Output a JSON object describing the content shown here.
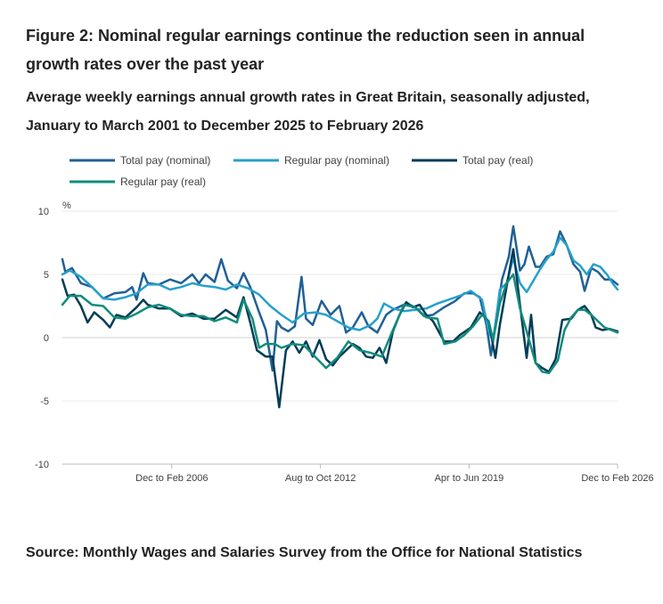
{
  "title": "Figure 2: Nominal regular earnings continue the reduction seen in annual growth rates over the past year",
  "subtitle": "Average weekly earnings annual growth rates in Great Britain, seasonally adjusted, January to March 2001 to December 2025 to February 2026",
  "source": "Source: Monthly Wages and Salaries Survey from the Office for National Statistics",
  "chart_data": {
    "type": "line",
    "ylabel": "%",
    "ylim": [
      -10,
      10
    ],
    "yticks": [
      "10",
      "5",
      "0",
      "-5",
      "-10"
    ],
    "xticks": [
      {
        "label": "Dec to Feb 2006",
        "x": 2006.08
      },
      {
        "label": "Aug to Oct 2012",
        "x": 2012.75
      },
      {
        "label": "Apr to Jun 2019",
        "x": 2019.42
      },
      {
        "label": "Dec to Feb 2026",
        "x": 2026.08
      }
    ],
    "xlim": [
      2001.17,
      2026.08
    ],
    "grid": "horizontal",
    "legend_position": "top",
    "series": [
      {
        "name": "Total pay (nominal)",
        "color": "#206095",
        "points": [
          [
            2001.17,
            6.2
          ],
          [
            2001.3,
            5.2
          ],
          [
            2001.6,
            5.5
          ],
          [
            2002.0,
            4.3
          ],
          [
            2002.5,
            4.0
          ],
          [
            2003.0,
            3.1
          ],
          [
            2003.5,
            3.5
          ],
          [
            2004.0,
            3.6
          ],
          [
            2004.3,
            4.0
          ],
          [
            2004.5,
            3.0
          ],
          [
            2004.8,
            5.1
          ],
          [
            2005.0,
            4.3
          ],
          [
            2005.5,
            4.2
          ],
          [
            2006.0,
            4.6
          ],
          [
            2006.5,
            4.3
          ],
          [
            2007.0,
            5.0
          ],
          [
            2007.3,
            4.3
          ],
          [
            2007.6,
            5.0
          ],
          [
            2008.0,
            4.4
          ],
          [
            2008.3,
            6.2
          ],
          [
            2008.6,
            4.5
          ],
          [
            2009.0,
            3.9
          ],
          [
            2009.3,
            5.1
          ],
          [
            2009.6,
            4.0
          ],
          [
            2010.0,
            2.0
          ],
          [
            2010.3,
            0.6
          ],
          [
            2010.6,
            -2.6
          ],
          [
            2010.8,
            1.3
          ],
          [
            2011.0,
            0.8
          ],
          [
            2011.3,
            0.5
          ],
          [
            2011.6,
            0.9
          ],
          [
            2011.9,
            4.8
          ],
          [
            2012.1,
            1.5
          ],
          [
            2012.4,
            1.0
          ],
          [
            2012.8,
            2.9
          ],
          [
            2013.2,
            1.8
          ],
          [
            2013.6,
            2.5
          ],
          [
            2013.9,
            0.4
          ],
          [
            2014.2,
            0.8
          ],
          [
            2014.6,
            2.0
          ],
          [
            2014.9,
            0.9
          ],
          [
            2015.3,
            0.4
          ],
          [
            2015.7,
            1.8
          ],
          [
            2016.0,
            2.2
          ],
          [
            2016.6,
            2.7
          ],
          [
            2017.0,
            2.4
          ],
          [
            2017.4,
            1.7
          ],
          [
            2017.8,
            1.8
          ],
          [
            2018.3,
            2.4
          ],
          [
            2018.8,
            2.9
          ],
          [
            2019.2,
            3.5
          ],
          [
            2019.6,
            3.5
          ],
          [
            2019.9,
            3.2
          ],
          [
            2020.2,
            1.0
          ],
          [
            2020.4,
            -1.4
          ],
          [
            2020.7,
            2.3
          ],
          [
            2020.9,
            4.6
          ],
          [
            2021.2,
            6.4
          ],
          [
            2021.4,
            8.8
          ],
          [
            2021.7,
            5.3
          ],
          [
            2021.9,
            5.8
          ],
          [
            2022.1,
            7.2
          ],
          [
            2022.4,
            5.6
          ],
          [
            2022.6,
            5.6
          ],
          [
            2022.9,
            6.4
          ],
          [
            2023.2,
            6.6
          ],
          [
            2023.5,
            8.4
          ],
          [
            2023.8,
            7.3
          ],
          [
            2024.1,
            5.8
          ],
          [
            2024.4,
            5.2
          ],
          [
            2024.6,
            3.7
          ],
          [
            2024.9,
            5.5
          ],
          [
            2025.2,
            5.2
          ],
          [
            2025.5,
            4.6
          ],
          [
            2025.8,
            4.6
          ],
          [
            2026.08,
            4.2
          ]
        ]
      },
      {
        "name": "Regular pay (nominal)",
        "color": "#27a0cc",
        "points": [
          [
            2001.17,
            5.0
          ],
          [
            2001.5,
            5.3
          ],
          [
            2002.0,
            4.8
          ],
          [
            2002.5,
            4.0
          ],
          [
            2003.0,
            3.1
          ],
          [
            2003.5,
            3.0
          ],
          [
            2004.0,
            3.2
          ],
          [
            2004.5,
            3.5
          ],
          [
            2005.0,
            4.2
          ],
          [
            2005.5,
            4.2
          ],
          [
            2006.0,
            3.8
          ],
          [
            2006.5,
            4.0
          ],
          [
            2007.0,
            4.3
          ],
          [
            2007.5,
            4.1
          ],
          [
            2008.0,
            4.0
          ],
          [
            2008.5,
            3.8
          ],
          [
            2009.0,
            4.2
          ],
          [
            2009.5,
            3.9
          ],
          [
            2010.0,
            3.4
          ],
          [
            2010.5,
            2.5
          ],
          [
            2011.0,
            1.8
          ],
          [
            2011.5,
            1.2
          ],
          [
            2012.0,
            1.9
          ],
          [
            2012.5,
            2.0
          ],
          [
            2013.0,
            1.8
          ],
          [
            2013.5,
            1.3
          ],
          [
            2014.0,
            0.8
          ],
          [
            2014.5,
            0.6
          ],
          [
            2015.0,
            1.0
          ],
          [
            2015.3,
            1.5
          ],
          [
            2015.6,
            2.7
          ],
          [
            2016.0,
            2.3
          ],
          [
            2016.5,
            2.1
          ],
          [
            2017.0,
            2.2
          ],
          [
            2017.5,
            2.3
          ],
          [
            2018.0,
            2.7
          ],
          [
            2018.5,
            3.0
          ],
          [
            2019.0,
            3.3
          ],
          [
            2019.5,
            3.7
          ],
          [
            2020.0,
            3.0
          ],
          [
            2020.3,
            0.5
          ],
          [
            2020.5,
            -0.3
          ],
          [
            2020.8,
            3.8
          ],
          [
            2021.1,
            4.3
          ],
          [
            2021.4,
            6.3
          ],
          [
            2021.7,
            4.3
          ],
          [
            2022.0,
            3.6
          ],
          [
            2022.3,
            4.5
          ],
          [
            2022.6,
            5.4
          ],
          [
            2022.9,
            6.2
          ],
          [
            2023.2,
            6.8
          ],
          [
            2023.5,
            7.9
          ],
          [
            2023.8,
            7.3
          ],
          [
            2024.1,
            6.1
          ],
          [
            2024.4,
            5.7
          ],
          [
            2024.7,
            5.0
          ],
          [
            2025.0,
            5.8
          ],
          [
            2025.3,
            5.6
          ],
          [
            2025.6,
            5.0
          ],
          [
            2025.9,
            4.2
          ],
          [
            2026.08,
            3.8
          ]
        ]
      },
      {
        "name": "Total pay (real)",
        "color": "#003c57",
        "points": [
          [
            2001.17,
            4.6
          ],
          [
            2001.4,
            3.3
          ],
          [
            2001.7,
            3.4
          ],
          [
            2002.0,
            2.5
          ],
          [
            2002.3,
            1.2
          ],
          [
            2002.6,
            2.0
          ],
          [
            2003.0,
            1.4
          ],
          [
            2003.3,
            0.8
          ],
          [
            2003.6,
            1.8
          ],
          [
            2004.0,
            1.6
          ],
          [
            2004.5,
            2.4
          ],
          [
            2004.8,
            3.0
          ],
          [
            2005.0,
            2.6
          ],
          [
            2005.5,
            2.3
          ],
          [
            2006.0,
            2.3
          ],
          [
            2006.5,
            1.7
          ],
          [
            2007.0,
            1.9
          ],
          [
            2007.5,
            1.5
          ],
          [
            2008.0,
            1.5
          ],
          [
            2008.5,
            2.2
          ],
          [
            2009.0,
            1.6
          ],
          [
            2009.3,
            3.2
          ],
          [
            2009.6,
            1.2
          ],
          [
            2009.9,
            -1.0
          ],
          [
            2010.3,
            -1.5
          ],
          [
            2010.6,
            -1.5
          ],
          [
            2010.9,
            -5.5
          ],
          [
            2011.2,
            -1.0
          ],
          [
            2011.5,
            -0.3
          ],
          [
            2011.8,
            -1.2
          ],
          [
            2012.1,
            -0.3
          ],
          [
            2012.4,
            -1.5
          ],
          [
            2012.7,
            -0.2
          ],
          [
            2013.0,
            -1.7
          ],
          [
            2013.3,
            -2.2
          ],
          [
            2013.6,
            -1.5
          ],
          [
            2013.9,
            -1.0
          ],
          [
            2014.2,
            -0.5
          ],
          [
            2014.5,
            -0.8
          ],
          [
            2014.8,
            -1.5
          ],
          [
            2015.1,
            -1.6
          ],
          [
            2015.4,
            -0.8
          ],
          [
            2015.7,
            -2.0
          ],
          [
            2016.0,
            0.5
          ],
          [
            2016.3,
            1.8
          ],
          [
            2016.6,
            2.8
          ],
          [
            2016.9,
            2.4
          ],
          [
            2017.2,
            2.6
          ],
          [
            2017.5,
            1.8
          ],
          [
            2017.8,
            1.3
          ],
          [
            2018.3,
            -0.3
          ],
          [
            2018.7,
            -0.3
          ],
          [
            2019.0,
            0.2
          ],
          [
            2019.5,
            0.8
          ],
          [
            2019.9,
            2.0
          ],
          [
            2020.3,
            1.3
          ],
          [
            2020.6,
            -1.6
          ],
          [
            2020.8,
            1.0
          ],
          [
            2021.0,
            3.0
          ],
          [
            2021.4,
            7.0
          ],
          [
            2021.7,
            2.6
          ],
          [
            2022.0,
            -1.6
          ],
          [
            2022.2,
            1.8
          ],
          [
            2022.4,
            -2.0
          ],
          [
            2022.7,
            -2.4
          ],
          [
            2023.0,
            -2.7
          ],
          [
            2023.3,
            -1.7
          ],
          [
            2023.6,
            1.4
          ],
          [
            2024.0,
            1.5
          ],
          [
            2024.3,
            2.2
          ],
          [
            2024.6,
            2.5
          ],
          [
            2024.9,
            1.8
          ],
          [
            2025.1,
            0.8
          ],
          [
            2025.4,
            0.6
          ],
          [
            2025.7,
            0.7
          ],
          [
            2026.08,
            0.5
          ]
        ]
      },
      {
        "name": "Regular pay (real)",
        "color": "#118c7b",
        "points": [
          [
            2001.17,
            2.6
          ],
          [
            2001.5,
            3.3
          ],
          [
            2002.0,
            3.3
          ],
          [
            2002.5,
            2.6
          ],
          [
            2003.0,
            2.5
          ],
          [
            2003.5,
            1.6
          ],
          [
            2004.0,
            1.5
          ],
          [
            2004.5,
            1.9
          ],
          [
            2005.0,
            2.4
          ],
          [
            2005.5,
            2.6
          ],
          [
            2006.0,
            2.3
          ],
          [
            2006.5,
            1.8
          ],
          [
            2007.0,
            1.7
          ],
          [
            2007.5,
            1.7
          ],
          [
            2008.0,
            1.3
          ],
          [
            2008.5,
            1.6
          ],
          [
            2009.0,
            1.2
          ],
          [
            2009.3,
            3.0
          ],
          [
            2009.7,
            1.5
          ],
          [
            2010.0,
            -0.8
          ],
          [
            2010.3,
            -0.5
          ],
          [
            2010.7,
            -0.5
          ],
          [
            2011.0,
            -0.8
          ],
          [
            2011.5,
            -0.5
          ],
          [
            2012.0,
            -0.6
          ],
          [
            2012.5,
            -1.5
          ],
          [
            2013.0,
            -2.4
          ],
          [
            2013.5,
            -1.6
          ],
          [
            2014.0,
            -0.3
          ],
          [
            2014.5,
            -1.0
          ],
          [
            2015.0,
            -1.2
          ],
          [
            2015.5,
            -1.5
          ],
          [
            2016.0,
            0.6
          ],
          [
            2016.5,
            2.6
          ],
          [
            2017.0,
            2.4
          ],
          [
            2017.5,
            1.6
          ],
          [
            2018.0,
            1.5
          ],
          [
            2018.3,
            -0.5
          ],
          [
            2018.8,
            -0.3
          ],
          [
            2019.2,
            0.2
          ],
          [
            2019.6,
            0.9
          ],
          [
            2020.0,
            1.8
          ],
          [
            2020.3,
            1.3
          ],
          [
            2020.5,
            -0.2
          ],
          [
            2020.8,
            2.7
          ],
          [
            2021.1,
            4.3
          ],
          [
            2021.4,
            5.0
          ],
          [
            2021.7,
            2.3
          ],
          [
            2022.0,
            0.5
          ],
          [
            2022.4,
            -2.0
          ],
          [
            2022.7,
            -2.7
          ],
          [
            2023.0,
            -2.8
          ],
          [
            2023.4,
            -1.8
          ],
          [
            2023.7,
            0.6
          ],
          [
            2024.0,
            1.6
          ],
          [
            2024.3,
            2.2
          ],
          [
            2024.6,
            2.2
          ],
          [
            2024.9,
            1.8
          ],
          [
            2025.2,
            1.3
          ],
          [
            2025.5,
            0.8
          ],
          [
            2025.8,
            0.6
          ],
          [
            2026.08,
            0.4
          ]
        ]
      }
    ]
  }
}
